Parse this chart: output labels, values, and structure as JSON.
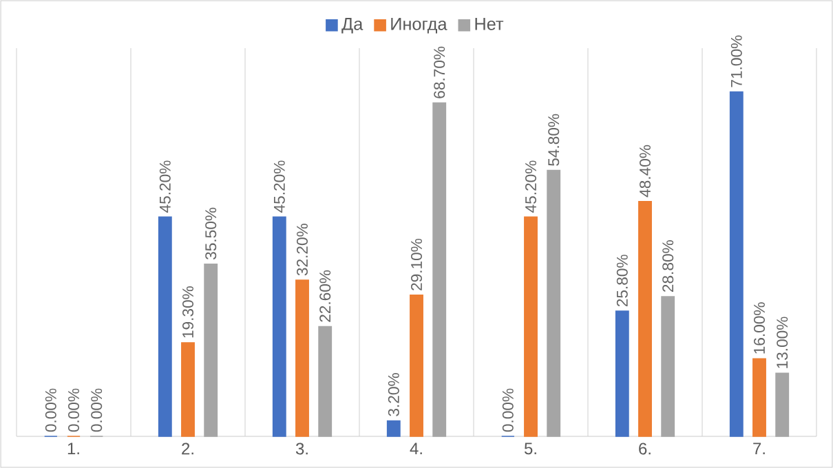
{
  "chart_data": {
    "type": "bar",
    "categories": [
      "1.",
      "2.",
      "3.",
      "4.",
      "5.",
      "6.",
      "7."
    ],
    "series": [
      {
        "name": "Да",
        "color": "#4472c4",
        "values": [
          0,
          45.2,
          45.2,
          3.2,
          0,
          25.8,
          71.0
        ],
        "value_labels": [
          "0.00%",
          "45.20%",
          "45.20%",
          "3.20%",
          "0.00%",
          "25.80%",
          "71.00%"
        ]
      },
      {
        "name": "Иногда",
        "color": "#ed7d31",
        "values": [
          0,
          19.3,
          32.2,
          29.1,
          45.2,
          48.4,
          16.0
        ],
        "value_labels": [
          "0.00%",
          "19.30%",
          "32.20%",
          "29.10%",
          "45.20%",
          "48.40%",
          "16.00%"
        ]
      },
      {
        "name": "Нет",
        "color": "#a5a5a5",
        "values": [
          0,
          35.5,
          22.6,
          68.7,
          54.8,
          28.8,
          13.0
        ],
        "value_labels": [
          "0.00%",
          "35.50%",
          "22.60%",
          "68.70%",
          "54.80%",
          "28.80%",
          "13.00%"
        ]
      }
    ],
    "ylim": [
      0,
      80
    ],
    "tick_labels": "x",
    "grid": "x",
    "legend": "top"
  }
}
